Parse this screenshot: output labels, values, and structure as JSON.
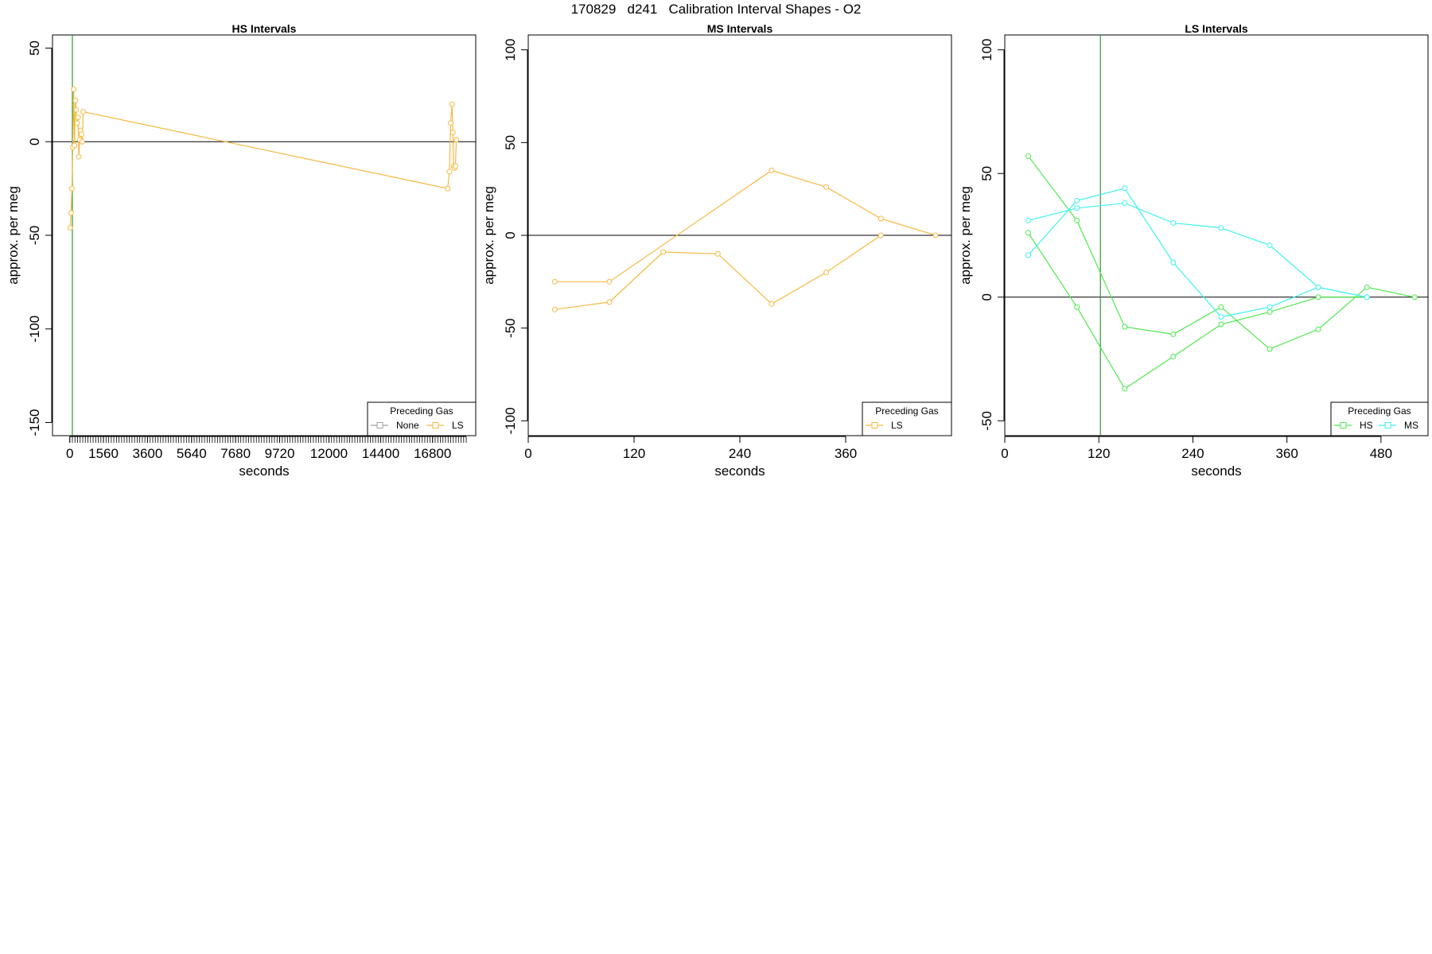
{
  "figure_title": "170829   d241   Calibration Interval Shapes - O2",
  "colors": {
    "LS": "#f5b942",
    "HS": "#4ee84e",
    "MS": "#3ef0f0",
    "None": "#a0a0a0",
    "vline": "#2a9a2a",
    "zero_line": "#000000"
  },
  "chart_data": [
    {
      "type": "line",
      "title": "HS Intervals",
      "xlabel": "seconds",
      "ylabel": "approx. per meg",
      "xlim": [
        -800,
        18800
      ],
      "ylim": [
        -157,
        57
      ],
      "x_ticks": [
        0,
        1560,
        3600,
        5640,
        7680,
        9720,
        12000,
        14400,
        16800
      ],
      "x_minor_tick_step": 120,
      "x_minor_tick_max": 18360,
      "y_ticks": [
        50,
        0,
        -50,
        -100,
        -150
      ],
      "hline": 0,
      "vline": 120,
      "legend": {
        "title": "Preceding Gas",
        "position": "bottom-right",
        "entries": [
          {
            "label": "None",
            "color": "#a0a0a0"
          },
          {
            "label": "LS",
            "color": "#f5b942"
          }
        ]
      },
      "series": [
        {
          "name": "LS",
          "color": "#f5b942",
          "x": [
            20,
            60,
            100,
            140,
            180,
            220,
            260,
            300,
            340,
            380,
            420,
            460,
            500,
            540,
            580,
            620,
            17500,
            17580,
            17640,
            17700,
            17740,
            17780,
            17820,
            17860,
            17900
          ],
          "y": [
            -46,
            -38,
            -25,
            -3,
            28,
            -2,
            22,
            17,
            10,
            13,
            -8,
            1,
            6,
            4,
            0,
            16,
            -25,
            -16,
            10,
            20,
            5,
            -13,
            -14,
            -13,
            1
          ]
        }
      ]
    },
    {
      "type": "line",
      "title": "MS Intervals",
      "xlabel": "seconds",
      "ylabel": "approx. per meg",
      "xlim": [
        0,
        480
      ],
      "ylim": [
        -108,
        108
      ],
      "x_ticks": [
        0,
        120,
        240,
        360
      ],
      "y_ticks": [
        100,
        50,
        0,
        -50,
        -100
      ],
      "hline": 0,
      "legend": {
        "title": "Preceding Gas",
        "position": "bottom-right",
        "entries": [
          {
            "label": "LS",
            "color": "#f5b942"
          }
        ]
      },
      "series": [
        {
          "name": "LS",
          "color": "#f5b942",
          "x": [
            30,
            92,
            276,
            338,
            400,
            462
          ],
          "y": [
            -25,
            -25,
            35,
            26,
            9,
            0
          ]
        },
        {
          "name": "LS",
          "color": "#f5b942",
          "x": [
            30,
            92,
            153,
            215,
            276,
            338,
            400
          ],
          "y": [
            -40,
            -36,
            -9,
            -10,
            -37,
            -20,
            0
          ]
        }
      ]
    },
    {
      "type": "line",
      "title": "LS Intervals",
      "xlabel": "seconds",
      "ylabel": "approx. per meg",
      "xlim": [
        0,
        540
      ],
      "ylim": [
        -56,
        106
      ],
      "x_ticks": [
        0,
        120,
        240,
        360,
        480
      ],
      "y_ticks": [
        100,
        50,
        0,
        -50
      ],
      "hline": 0,
      "vline": 122,
      "legend": {
        "title": "Preceding Gas",
        "position": "bottom-right",
        "entries": [
          {
            "label": "HS",
            "color": "#4ee84e"
          },
          {
            "label": "MS",
            "color": "#3ef0f0"
          }
        ]
      },
      "series": [
        {
          "name": "HS",
          "color": "#4ee84e",
          "x": [
            30,
            92,
            153,
            215,
            276,
            338,
            400,
            462,
            523
          ],
          "y": [
            57,
            31,
            -12,
            -15,
            -4,
            -21,
            -13,
            4,
            0
          ]
        },
        {
          "name": "HS",
          "color": "#4ee84e",
          "x": [
            30,
            92,
            153,
            215,
            276,
            338,
            400,
            462
          ],
          "y": [
            26,
            -4,
            -37,
            -24,
            -11,
            -6,
            0,
            0
          ]
        },
        {
          "name": "MS",
          "color": "#3ef0f0",
          "x": [
            30,
            92,
            153,
            215,
            276,
            338,
            400,
            462
          ],
          "y": [
            31,
            36,
            38,
            30,
            28,
            21,
            4,
            0
          ]
        },
        {
          "name": "MS",
          "color": "#3ef0f0",
          "x": [
            30,
            92,
            153,
            215,
            276,
            338,
            400,
            462
          ],
          "y": [
            17,
            39,
            44,
            14,
            -8,
            -4,
            4,
            0
          ]
        }
      ]
    }
  ]
}
